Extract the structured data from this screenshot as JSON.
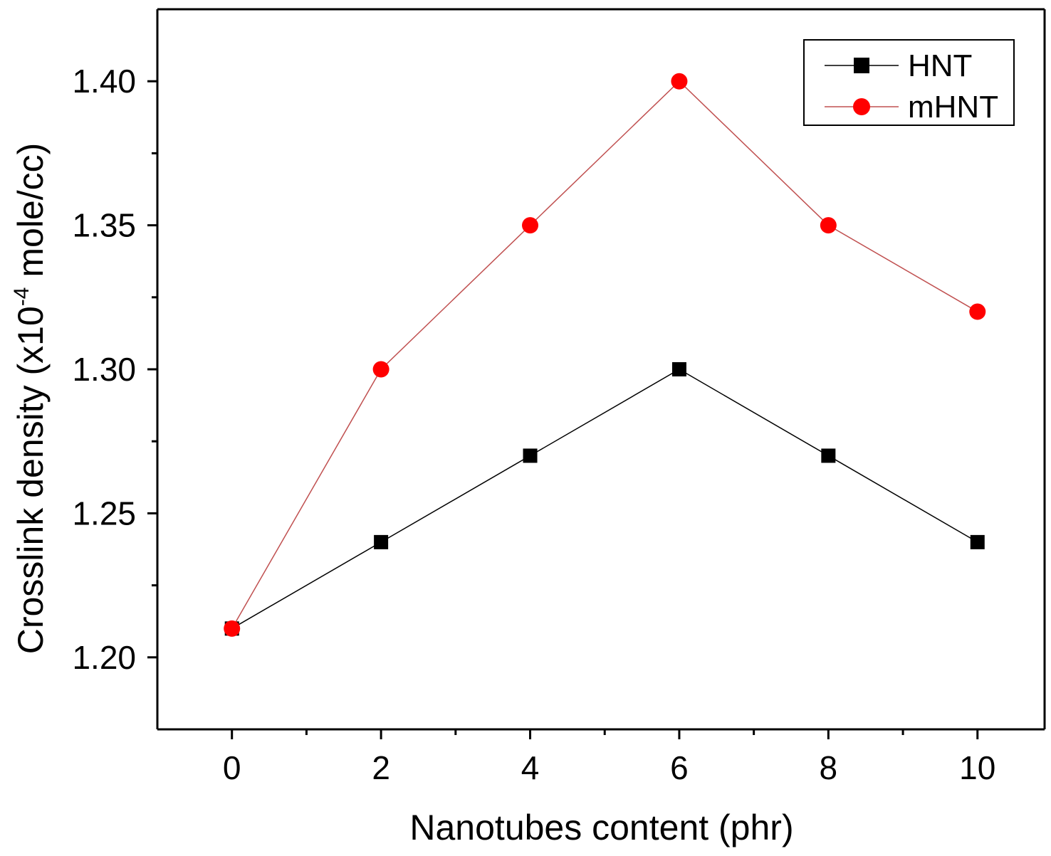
{
  "chart_data": {
    "type": "line",
    "xlabel": "Nanotubes content (phr)",
    "ylabel": {
      "prefix": "Crosslink density (x10",
      "exponent": "-4",
      "suffix": " mole/cc)"
    },
    "xlim": [
      -1.0,
      10.9
    ],
    "ylim": [
      1.175,
      1.425
    ],
    "x_ticks": [
      0,
      2,
      4,
      6,
      8,
      10
    ],
    "x_tick_labels": [
      "0",
      "2",
      "4",
      "6",
      "8",
      "10"
    ],
    "x_minor_ticks": [
      1,
      3,
      5,
      7,
      9
    ],
    "y_ticks": [
      1.2,
      1.25,
      1.3,
      1.35,
      1.4
    ],
    "y_tick_labels": [
      "1.20",
      "1.25",
      "1.30",
      "1.35",
      "1.40"
    ],
    "y_minor_ticks": [
      1.225,
      1.275,
      1.325,
      1.375
    ],
    "x": [
      0,
      2,
      4,
      6,
      8,
      10
    ],
    "series": [
      {
        "name": "HNT",
        "marker": "square",
        "color": "#000000",
        "values": [
          1.21,
          1.24,
          1.27,
          1.3,
          1.27,
          1.24
        ]
      },
      {
        "name": "mHNT",
        "marker": "circle",
        "color": "#ff0000",
        "line_color": "#c05050",
        "values": [
          1.21,
          1.3,
          1.35,
          1.4,
          1.35,
          1.32
        ]
      }
    ],
    "legend_position": "top-right",
    "grid": false
  }
}
